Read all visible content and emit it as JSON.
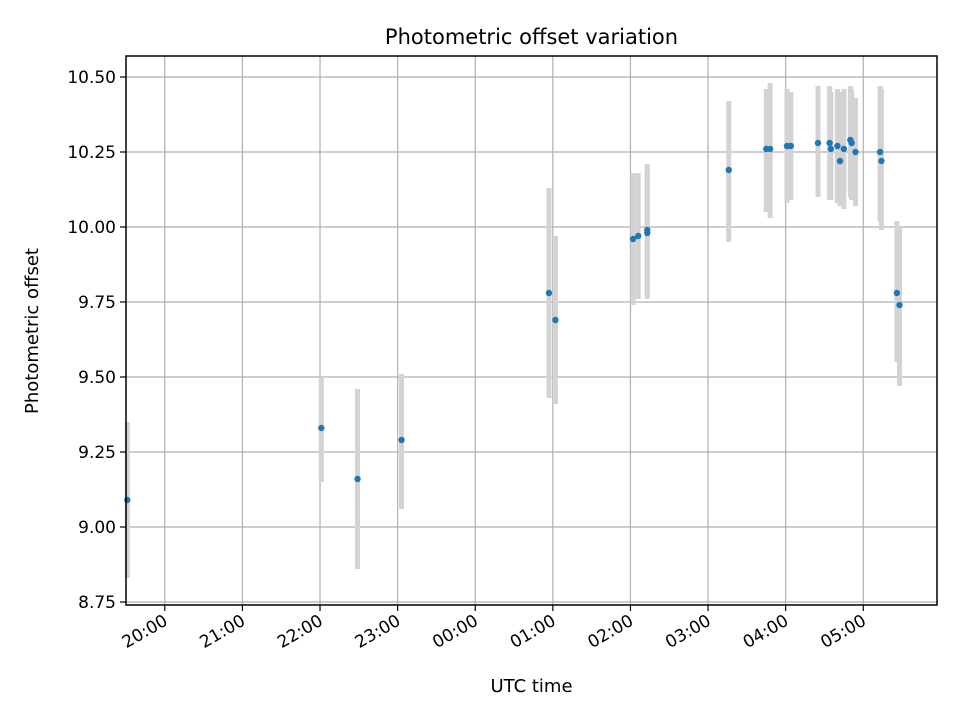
{
  "chart_data": {
    "type": "scatter",
    "title": "Photometric offset variation",
    "xlabel": "UTC time",
    "ylabel": "Photometric offset",
    "ylim": [
      8.74,
      10.57
    ],
    "xlim_hours_utc": [
      "19:30",
      "05:57"
    ],
    "x_tick_labels": [
      "20:00",
      "21:00",
      "22:00",
      "23:00",
      "00:00",
      "01:00",
      "02:00",
      "03:00",
      "04:00",
      "05:00"
    ],
    "y_tick_labels": [
      "8.75",
      "9.00",
      "9.25",
      "9.50",
      "9.75",
      "10.00",
      "10.25",
      "10.50"
    ],
    "grid": true,
    "marker_color": "#1f77b4",
    "errorbar_color": "#d3d3d3",
    "points": [
      {
        "x": "19:31",
        "y": 9.09,
        "yerr_low": 8.83,
        "yerr_high": 9.35
      },
      {
        "x": "22:01",
        "y": 9.33,
        "yerr_low": 9.15,
        "yerr_high": 9.5
      },
      {
        "x": "22:29",
        "y": 9.16,
        "yerr_low": 8.86,
        "yerr_high": 9.46
      },
      {
        "x": "23:03",
        "y": 9.29,
        "yerr_low": 9.06,
        "yerr_high": 9.51
      },
      {
        "x": "00:57",
        "y": 9.78,
        "yerr_low": 9.43,
        "yerr_high": 10.13
      },
      {
        "x": "01:02",
        "y": 9.69,
        "yerr_low": 9.41,
        "yerr_high": 9.97
      },
      {
        "x": "02:02",
        "y": 9.96,
        "yerr_low": 9.74,
        "yerr_high": 10.18
      },
      {
        "x": "02:06",
        "y": 9.97,
        "yerr_low": 9.76,
        "yerr_high": 10.18
      },
      {
        "x": "02:13",
        "y": 9.98,
        "yerr_low": 9.76,
        "yerr_high": 10.21
      },
      {
        "x": "02:13",
        "y": 9.99,
        "yerr_low": 9.77,
        "yerr_high": 10.2
      },
      {
        "x": "03:16",
        "y": 10.19,
        "yerr_low": 9.95,
        "yerr_high": 10.42
      },
      {
        "x": "03:45",
        "y": 10.26,
        "yerr_low": 10.05,
        "yerr_high": 10.46
      },
      {
        "x": "03:48",
        "y": 10.26,
        "yerr_low": 10.03,
        "yerr_high": 10.48
      },
      {
        "x": "04:01",
        "y": 10.27,
        "yerr_low": 10.08,
        "yerr_high": 10.46
      },
      {
        "x": "04:04",
        "y": 10.27,
        "yerr_low": 10.09,
        "yerr_high": 10.45
      },
      {
        "x": "04:25",
        "y": 10.28,
        "yerr_low": 10.1,
        "yerr_high": 10.47
      },
      {
        "x": "04:34",
        "y": 10.28,
        "yerr_low": 10.09,
        "yerr_high": 10.47
      },
      {
        "x": "04:35",
        "y": 10.26,
        "yerr_low": 10.09,
        "yerr_high": 10.45
      },
      {
        "x": "04:40",
        "y": 10.27,
        "yerr_low": 10.08,
        "yerr_high": 10.46
      },
      {
        "x": "04:42",
        "y": 10.22,
        "yerr_low": 10.07,
        "yerr_high": 10.45
      },
      {
        "x": "04:45",
        "y": 10.26,
        "yerr_low": 10.06,
        "yerr_high": 10.46
      },
      {
        "x": "04:50",
        "y": 10.29,
        "yerr_low": 10.1,
        "yerr_high": 10.47
      },
      {
        "x": "04:51",
        "y": 10.28,
        "yerr_low": 10.09,
        "yerr_high": 10.46
      },
      {
        "x": "04:54",
        "y": 10.25,
        "yerr_low": 10.07,
        "yerr_high": 10.43
      },
      {
        "x": "05:13",
        "y": 10.25,
        "yerr_low": 10.02,
        "yerr_high": 10.47
      },
      {
        "x": "05:14",
        "y": 10.22,
        "yerr_low": 9.99,
        "yerr_high": 10.46
      },
      {
        "x": "05:26",
        "y": 9.78,
        "yerr_low": 9.55,
        "yerr_high": 10.02
      },
      {
        "x": "05:28",
        "y": 9.74,
        "yerr_low": 9.47,
        "yerr_high": 10.0
      }
    ]
  }
}
